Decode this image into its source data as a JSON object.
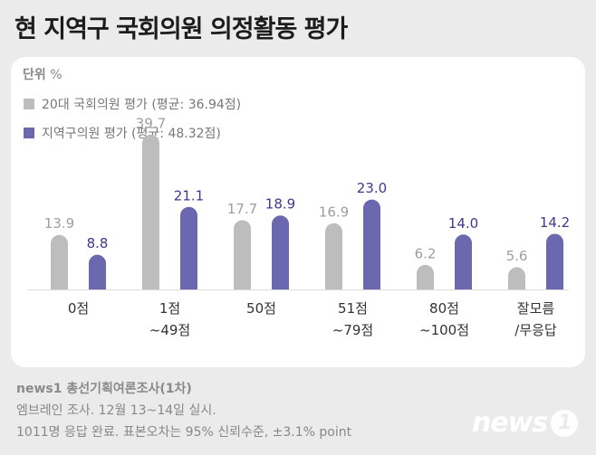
{
  "title": "현 지역구 국회의원 의정활동 평가",
  "unit": {
    "label": "단위",
    "value": "%"
  },
  "colors": {
    "series1": "#bdbdbd",
    "series2": "#6b68b0",
    "label1": "#9e9e9e",
    "label2": "#3d3a8f"
  },
  "chart_data": {
    "type": "bar",
    "categories": [
      "0점",
      "1점\n~49점",
      "50점",
      "51점\n~79점",
      "80점\n~100점",
      "잘모름\n/무응답"
    ],
    "series": [
      {
        "name": "20대 국회의원 평가 (평균: 36.94점)",
        "values": [
          13.9,
          39.7,
          17.7,
          16.9,
          6.2,
          5.6
        ],
        "labels": [
          "13.9",
          "39.7",
          "17.7",
          "16.9",
          "6.2",
          "5.6"
        ]
      },
      {
        "name": "지역구의원 평가 (평균: 48.32점)",
        "values": [
          8.8,
          21.1,
          18.9,
          23.0,
          14.0,
          14.2
        ],
        "labels": [
          "8.8",
          "21.1",
          "18.9",
          "23.0",
          "14.0",
          "14.2"
        ]
      }
    ],
    "ylim": [
      0,
      40
    ],
    "grid": false,
    "legend": "top-left"
  },
  "footer": {
    "source": "news1 총선기획여론조사(1차)",
    "line1": "엠브레인 조사. 12월 13~14일 실시.",
    "line2": "1011명 응답 완료. 표본오차는 95% 신뢰수준, ±3.1% point"
  },
  "logo": {
    "text": "news",
    "badge": "1"
  }
}
